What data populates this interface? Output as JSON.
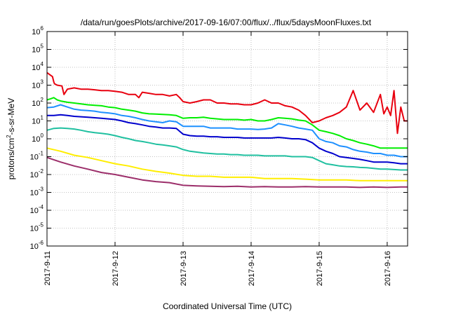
{
  "chart_data": {
    "type": "line",
    "title": "/data/run/goesPlots/archive/2017-09-16/07:00/flux/../flux/5daysMoonFluxes.txt",
    "xlabel": "Coordinated Universal Time (UTC)",
    "ylabel_main": "protons/cm",
    "ylabel_sup": "2",
    "ylabel_rest": "-s-sr-MeV",
    "x_ticks": [
      "2017-9-11",
      "2017-9-12",
      "2017-9-13",
      "2017-9-14",
      "2017-9-15",
      "2017-9-16"
    ],
    "xlim_days": [
      0,
      5.3
    ],
    "y_scale": "log",
    "y_tick_exponents": [
      -6,
      -5,
      -4,
      -3,
      -2,
      -1,
      0,
      1,
      2,
      3,
      4,
      5,
      6
    ],
    "ylim": [
      "1e-6",
      "1e6"
    ],
    "grid": true,
    "series": [
      {
        "color": "#e8000f",
        "x": [
          0,
          0.08,
          0.1,
          0.11,
          0.15,
          0.22,
          0.25,
          0.3,
          0.4,
          0.5,
          0.6,
          0.7,
          0.8,
          0.9,
          1.0,
          1.1,
          1.2,
          1.3,
          1.35,
          1.4,
          1.5,
          1.6,
          1.7,
          1.8,
          1.9,
          1.95,
          2.0,
          2.1,
          2.2,
          2.3,
          2.4,
          2.5,
          2.6,
          2.7,
          2.8,
          2.9,
          3.0,
          3.1,
          3.2,
          3.3,
          3.4,
          3.5,
          3.6,
          3.7,
          3.8,
          3.9,
          4.0,
          4.1,
          4.2,
          4.3,
          4.4,
          4.5,
          4.6,
          4.7,
          4.8,
          4.9,
          4.95,
          5.0,
          5.05,
          5.1,
          5.15,
          5.2,
          5.25,
          5.3
        ],
        "y": [
          5000,
          3000,
          1500,
          1200,
          1000,
          900,
          300,
          600,
          700,
          600,
          600,
          550,
          500,
          500,
          450,
          400,
          300,
          300,
          200,
          400,
          350,
          300,
          300,
          250,
          300,
          200,
          120,
          100,
          120,
          150,
          150,
          100,
          100,
          90,
          90,
          80,
          80,
          100,
          150,
          100,
          100,
          70,
          60,
          40,
          20,
          8,
          10,
          15,
          20,
          30,
          60,
          500,
          40,
          100,
          30,
          300,
          25,
          60,
          20,
          500,
          2,
          60,
          10,
          10
        ]
      },
      {
        "color": "#00ee00",
        "x": [
          0,
          0.05,
          0.1,
          0.15,
          0.2,
          0.3,
          0.4,
          0.5,
          0.6,
          0.7,
          0.8,
          0.9,
          1.0,
          1.1,
          1.2,
          1.3,
          1.4,
          1.5,
          1.6,
          1.7,
          1.8,
          1.9,
          2.0,
          2.1,
          2.2,
          2.3,
          2.4,
          2.5,
          2.6,
          2.7,
          2.8,
          2.9,
          3.0,
          3.1,
          3.2,
          3.3,
          3.4,
          3.5,
          3.6,
          3.7,
          3.8,
          3.9,
          4.0,
          4.1,
          4.2,
          4.3,
          4.4,
          4.5,
          4.6,
          4.7,
          4.8,
          4.9,
          5.0,
          5.1,
          5.2,
          5.3
        ],
        "y": [
          150,
          170,
          200,
          150,
          130,
          110,
          100,
          90,
          80,
          75,
          70,
          60,
          55,
          45,
          40,
          35,
          28,
          25,
          24,
          23,
          22,
          20,
          14,
          15,
          15,
          16,
          14,
          13,
          12,
          12,
          12,
          11,
          12,
          10,
          10,
          12,
          15,
          14,
          13,
          11,
          10,
          6,
          3,
          2.5,
          2,
          1.5,
          1.0,
          0.8,
          0.6,
          0.5,
          0.4,
          0.3,
          0.3,
          0.3,
          0.3,
          0.3
        ]
      },
      {
        "color": "#1e90ff",
        "x": [
          0,
          0.1,
          0.2,
          0.3,
          0.4,
          0.5,
          0.6,
          0.7,
          0.8,
          0.9,
          1.0,
          1.1,
          1.2,
          1.3,
          1.4,
          1.5,
          1.6,
          1.7,
          1.8,
          1.9,
          2.0,
          2.1,
          2.2,
          2.3,
          2.4,
          2.5,
          2.6,
          2.7,
          2.8,
          2.9,
          3.0,
          3.1,
          3.2,
          3.3,
          3.4,
          3.5,
          3.6,
          3.7,
          3.8,
          3.9,
          4.0,
          4.1,
          4.2,
          4.3,
          4.4,
          4.5,
          4.6,
          4.7,
          4.8,
          4.9,
          5.0,
          5.1,
          5.2,
          5.3
        ],
        "y": [
          55,
          60,
          80,
          60,
          45,
          40,
          38,
          35,
          30,
          28,
          25,
          20,
          18,
          15,
          12,
          10,
          9,
          8,
          10,
          9,
          5,
          5,
          5,
          5,
          4,
          4,
          4,
          4,
          3.5,
          3.5,
          3.5,
          3.3,
          3.5,
          4,
          7,
          6,
          5,
          4,
          3.5,
          3,
          1.0,
          0.7,
          0.6,
          0.4,
          0.35,
          0.25,
          0.2,
          0.18,
          0.15,
          0.15,
          0.12,
          0.12,
          0.1,
          0.1
        ]
      },
      {
        "color": "#0000cd",
        "x": [
          0,
          0.1,
          0.2,
          0.3,
          0.4,
          0.5,
          0.6,
          0.7,
          0.8,
          0.9,
          1.0,
          1.1,
          1.2,
          1.3,
          1.4,
          1.5,
          1.6,
          1.7,
          1.8,
          1.9,
          2.0,
          2.1,
          2.2,
          2.3,
          2.4,
          2.5,
          2.6,
          2.7,
          2.8,
          2.9,
          3.0,
          3.1,
          3.2,
          3.3,
          3.4,
          3.5,
          3.6,
          3.7,
          3.8,
          3.9,
          4.0,
          4.1,
          4.2,
          4.3,
          4.4,
          4.5,
          4.6,
          4.7,
          4.8,
          4.9,
          5.0,
          5.1,
          5.2,
          5.3
        ],
        "y": [
          20,
          20,
          22,
          20,
          18,
          17,
          16,
          15,
          14,
          13,
          12,
          10,
          8,
          7,
          6,
          5,
          4.5,
          4,
          4,
          3.8,
          1.8,
          1.5,
          1.4,
          1.4,
          1.3,
          1.3,
          1.2,
          1.2,
          1.2,
          1.1,
          1.1,
          1.1,
          1.1,
          1.1,
          1.2,
          1.1,
          1.0,
          1.0,
          0.9,
          0.6,
          0.3,
          0.2,
          0.15,
          0.1,
          0.09,
          0.08,
          0.07,
          0.06,
          0.05,
          0.05,
          0.05,
          0.045,
          0.04,
          0.04
        ]
      },
      {
        "color": "#20c0a0",
        "x": [
          0,
          0.1,
          0.2,
          0.3,
          0.4,
          0.5,
          0.6,
          0.7,
          0.8,
          0.9,
          1.0,
          1.1,
          1.2,
          1.3,
          1.4,
          1.5,
          1.6,
          1.7,
          1.8,
          1.9,
          2.0,
          2.1,
          2.2,
          2.3,
          2.4,
          2.5,
          2.6,
          2.7,
          2.8,
          2.9,
          3.0,
          3.1,
          3.2,
          3.3,
          3.4,
          3.5,
          3.6,
          3.7,
          3.8,
          3.9,
          4.0,
          4.1,
          4.2,
          4.3,
          4.4,
          4.5,
          4.6,
          4.7,
          4.8,
          4.9,
          5.0,
          5.1,
          5.2,
          5.3
        ],
        "y": [
          3,
          3.8,
          4,
          3.8,
          3.5,
          3,
          2.5,
          2.2,
          2,
          1.8,
          1.5,
          1.2,
          1.0,
          0.8,
          0.7,
          0.6,
          0.5,
          0.45,
          0.4,
          0.35,
          0.25,
          0.2,
          0.18,
          0.16,
          0.15,
          0.14,
          0.14,
          0.13,
          0.13,
          0.12,
          0.12,
          0.12,
          0.11,
          0.11,
          0.11,
          0.11,
          0.1,
          0.1,
          0.1,
          0.09,
          0.06,
          0.04,
          0.035,
          0.03,
          0.028,
          0.027,
          0.025,
          0.024,
          0.022,
          0.02,
          0.02,
          0.019,
          0.018,
          0.018
        ]
      },
      {
        "color": "#ffee00",
        "x": [
          0,
          0.2,
          0.4,
          0.6,
          0.8,
          1.0,
          1.2,
          1.4,
          1.6,
          1.8,
          2.0,
          2.2,
          2.4,
          2.6,
          2.8,
          3.0,
          3.2,
          3.4,
          3.6,
          3.8,
          4.0,
          4.2,
          4.4,
          4.6,
          4.8,
          5.0,
          5.2,
          5.3
        ],
        "y": [
          0.3,
          0.2,
          0.12,
          0.09,
          0.06,
          0.04,
          0.03,
          0.02,
          0.015,
          0.012,
          0.009,
          0.008,
          0.008,
          0.007,
          0.007,
          0.007,
          0.006,
          0.006,
          0.006,
          0.0055,
          0.005,
          0.005,
          0.005,
          0.0045,
          0.0045,
          0.0045,
          0.0045,
          0.0045
        ]
      },
      {
        "color": "#9c2e6a",
        "x": [
          0,
          0.2,
          0.4,
          0.6,
          0.8,
          1.0,
          1.2,
          1.4,
          1.6,
          1.8,
          2.0,
          2.2,
          2.4,
          2.6,
          2.8,
          3.0,
          3.2,
          3.4,
          3.6,
          3.8,
          4.0,
          4.2,
          4.4,
          4.6,
          4.8,
          5.0,
          5.2,
          5.3
        ],
        "y": [
          0.09,
          0.05,
          0.03,
          0.02,
          0.013,
          0.01,
          0.007,
          0.005,
          0.004,
          0.0035,
          0.0025,
          0.0023,
          0.0022,
          0.0021,
          0.0022,
          0.002,
          0.0021,
          0.002,
          0.002,
          0.0021,
          0.002,
          0.002,
          0.002,
          0.0019,
          0.002,
          0.0019,
          0.002,
          0.002
        ]
      }
    ]
  }
}
